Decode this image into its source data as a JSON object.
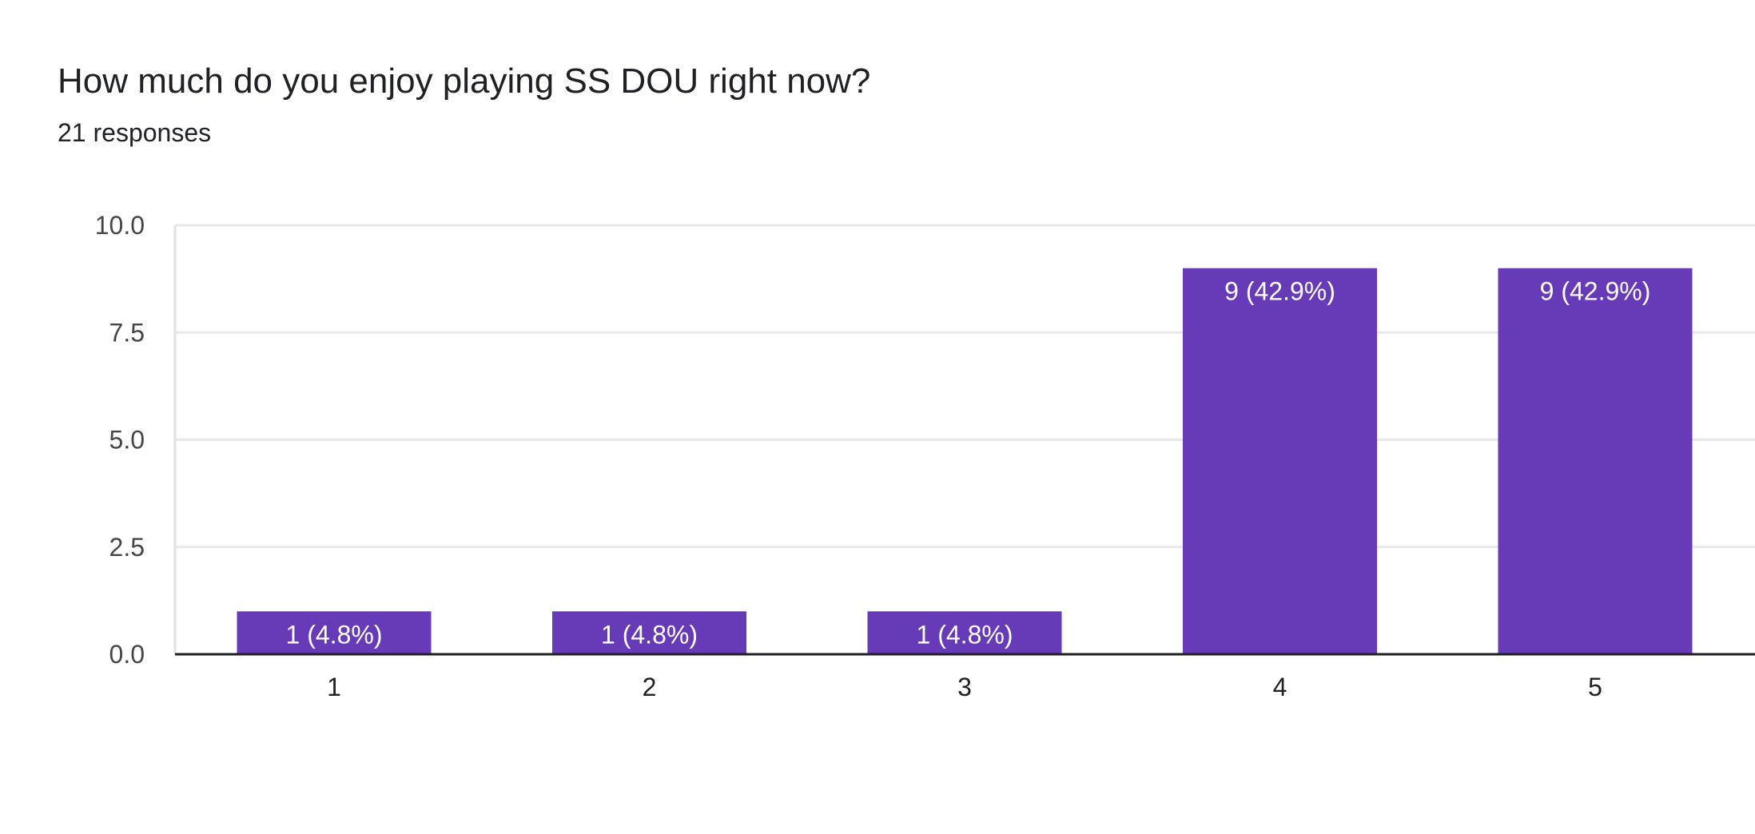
{
  "chart_data": {
    "type": "bar",
    "title": "How much do you enjoy playing SS DOU right now?",
    "subtitle": "21 responses",
    "categories": [
      "1",
      "2",
      "3",
      "4",
      "5"
    ],
    "values": [
      1,
      1,
      1,
      9,
      9
    ],
    "data_labels": [
      "1 (4.8%)",
      "1 (4.8%)",
      "1 (4.8%)",
      "9 (42.9%)",
      "9 (42.9%)"
    ],
    "ylim": [
      0,
      10
    ],
    "yticks": [
      0,
      2.5,
      5,
      7.5,
      10
    ],
    "ytick_labels": [
      "0.0",
      "2.5",
      "5.0",
      "7.5",
      "10.0"
    ],
    "grid": true,
    "legend": "none",
    "bar_color": "#673ab7"
  }
}
